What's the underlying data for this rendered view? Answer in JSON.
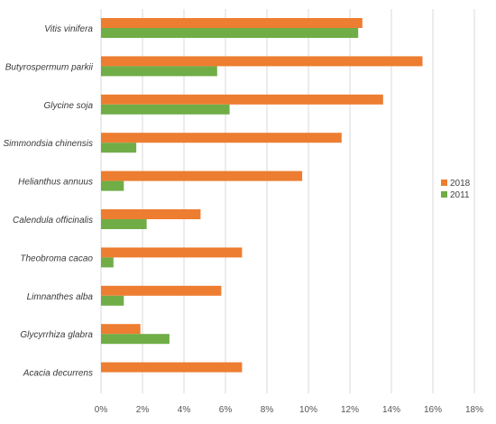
{
  "chart_data": {
    "type": "bar",
    "orientation": "horizontal",
    "categories": [
      "Vitis vinifera",
      "Butyrospermum parkii",
      "Glycine soja",
      "Simmondsia chinensis",
      "Helianthus annuus",
      "Calendula officinalis",
      "Theobroma cacao",
      "Limnanthes alba",
      "Glycyrrhiza glabra",
      "Acacia decurrens"
    ],
    "series": [
      {
        "name": "2018",
        "color": "#ED7D31",
        "values": [
          12.6,
          15.5,
          13.6,
          11.6,
          9.7,
          4.8,
          6.8,
          5.8,
          1.9,
          6.8
        ]
      },
      {
        "name": "2011",
        "color": "#70AD47",
        "values": [
          12.4,
          5.6,
          6.2,
          1.7,
          1.1,
          2.2,
          0.6,
          1.1,
          3.3,
          null
        ]
      }
    ],
    "xlim": [
      0,
      18
    ],
    "xticks": [
      "0%",
      "2%",
      "4%",
      "6%",
      "8%",
      "10%",
      "12%",
      "14%",
      "16%",
      "18%"
    ],
    "grid": true,
    "legend_position": "right"
  }
}
